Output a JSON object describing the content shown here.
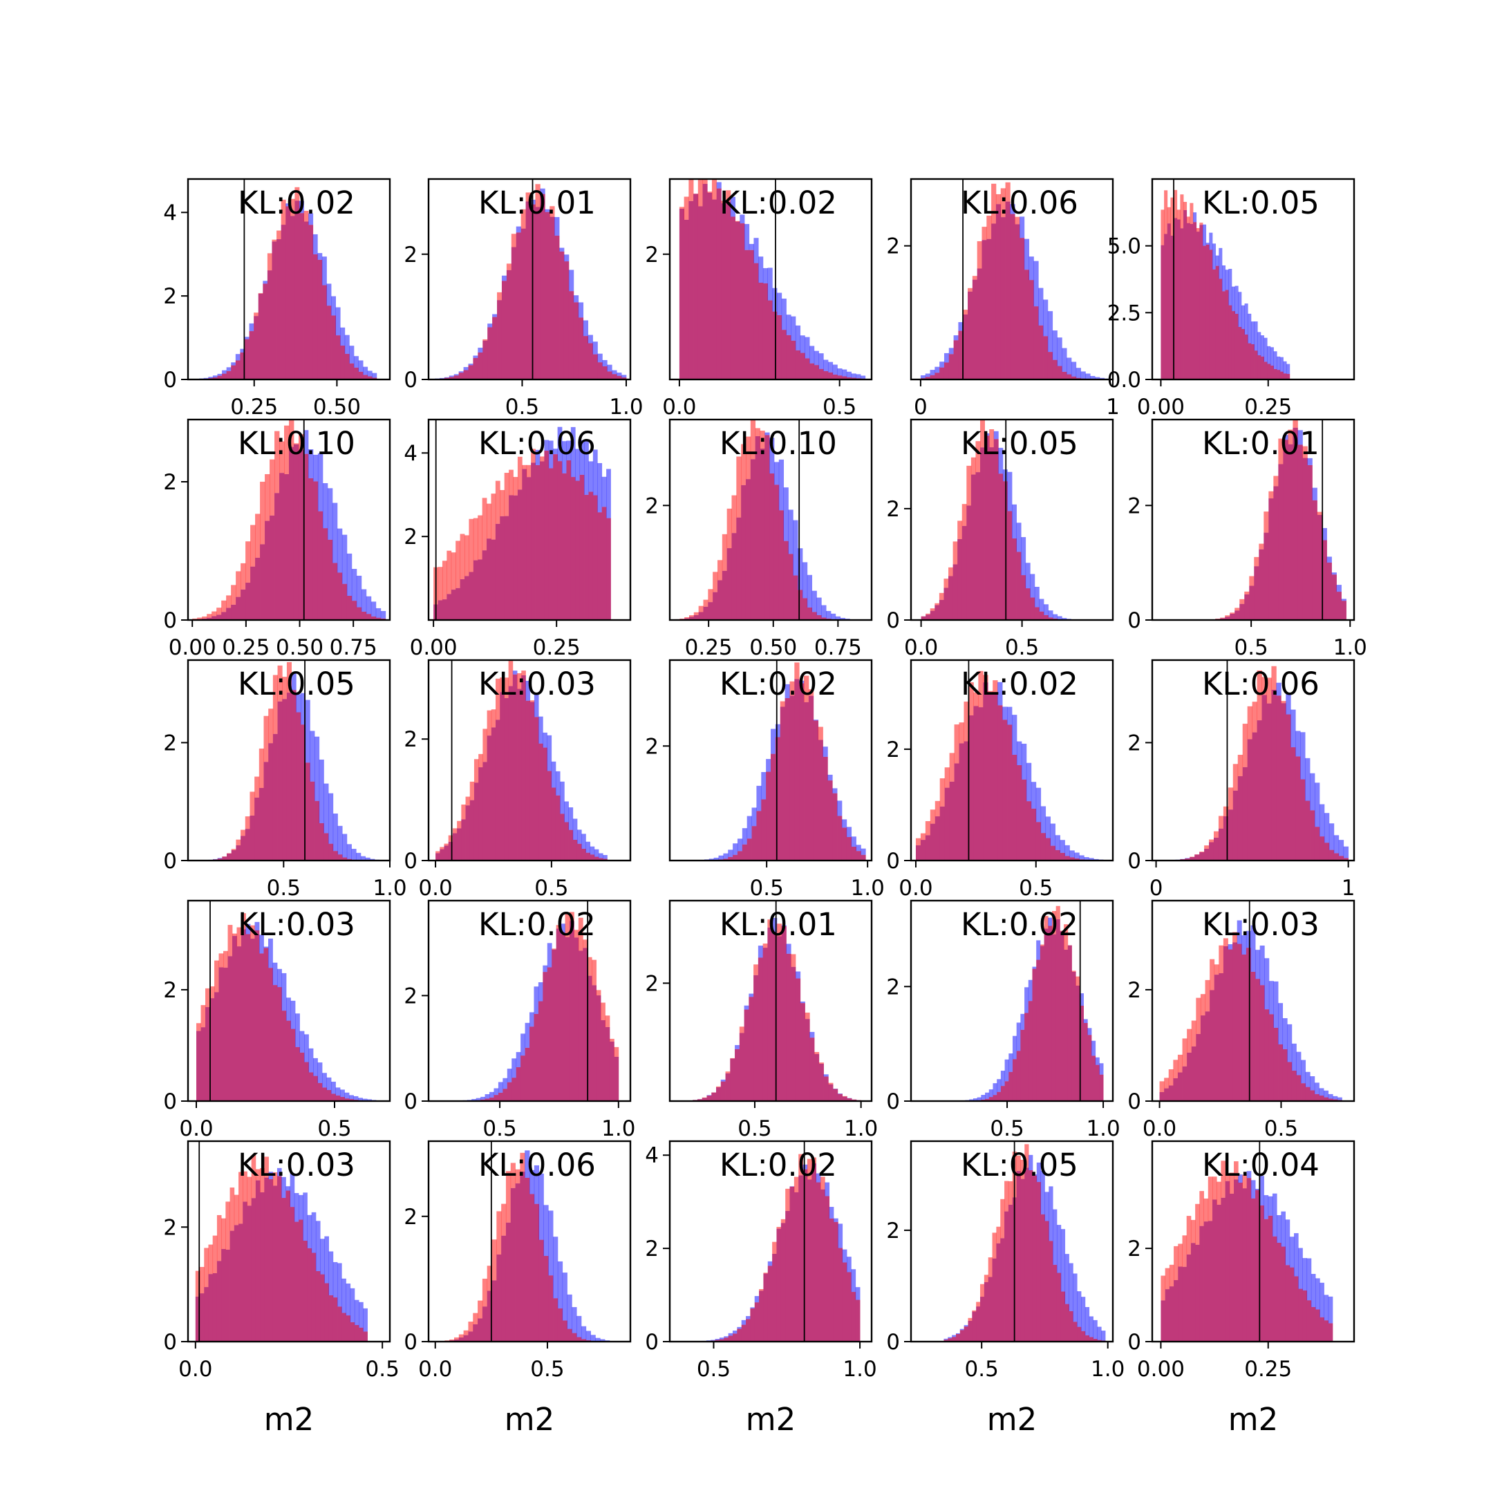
{
  "figure": {
    "rows": 5,
    "cols": 5,
    "xlabel": "m2",
    "colors": {
      "blue": "#0000ff",
      "red": "#ff0000",
      "overlap": "#c0397a",
      "vline": "#000000",
      "frame": "#000000"
    }
  },
  "chart_data": [
    {
      "type": "bar",
      "kl_label": "KL:0.02",
      "xlim": [
        0.05,
        0.66
      ],
      "ylim": [
        0,
        4.8
      ],
      "xticks": [
        0.25,
        0.5
      ],
      "xticklabels": [
        "0.25",
        "0.50"
      ],
      "yticks": [
        0,
        2,
        4
      ],
      "yticklabels": [
        "0",
        "2",
        "4"
      ],
      "vline": 0.22,
      "dist": {
        "blue": {
          "center": 0.38,
          "spread": 0.09,
          "lo": 0.07,
          "hi": 0.62,
          "peak": 4.2
        },
        "red": {
          "center": 0.37,
          "spread": 0.08,
          "lo": 0.07,
          "hi": 0.62,
          "peak": 4.4
        }
      }
    },
    {
      "type": "bar",
      "kl_label": "KL:0.01",
      "xlim": [
        0.05,
        1.02
      ],
      "ylim": [
        0,
        3.2
      ],
      "xticks": [
        0.5,
        1.0
      ],
      "xticklabels": [
        "0.5",
        "1.0"
      ],
      "yticks": [
        0,
        2
      ],
      "yticklabels": [
        "0",
        "2"
      ],
      "vline": 0.55,
      "dist": {
        "blue": {
          "center": 0.58,
          "spread": 0.15,
          "lo": 0.08,
          "hi": 1.0,
          "peak": 2.9
        },
        "red": {
          "center": 0.57,
          "spread": 0.14,
          "lo": 0.08,
          "hi": 1.0,
          "peak": 3.0
        }
      }
    },
    {
      "type": "bar",
      "kl_label": "KL:0.02",
      "xlim": [
        -0.03,
        0.6
      ],
      "ylim": [
        0,
        3.2
      ],
      "xticks": [
        0.0,
        0.5
      ],
      "xticklabels": [
        "0.0",
        "0.5"
      ],
      "yticks": [
        2
      ],
      "yticklabels": [
        "2"
      ],
      "vline": 0.3,
      "dist": {
        "blue": {
          "center": 0.1,
          "spread": 0.17,
          "lo": 0.0,
          "hi": 0.58,
          "peak": 3.0
        },
        "red": {
          "center": 0.08,
          "spread": 0.15,
          "lo": 0.0,
          "hi": 0.58,
          "peak": 3.2
        }
      }
    },
    {
      "type": "bar",
      "kl_label": "KL:0.06",
      "xlim": [
        -0.05,
        1.0
      ],
      "ylim": [
        0,
        3.0
      ],
      "xticks": [
        0.0,
        1.0
      ],
      "xticklabels": [
        "0",
        "1"
      ],
      "yticks": [
        2
      ],
      "yticklabels": [
        "2"
      ],
      "vline": 0.22,
      "dist": {
        "blue": {
          "center": 0.45,
          "spread": 0.16,
          "lo": 0.0,
          "hi": 0.98,
          "peak": 2.6
        },
        "red": {
          "center": 0.42,
          "spread": 0.13,
          "lo": 0.0,
          "hi": 0.98,
          "peak": 2.9
        }
      }
    },
    {
      "type": "bar",
      "kl_label": "KL:0.05",
      "xlim": [
        -0.02,
        0.45
      ],
      "ylim": [
        0,
        7.5
      ],
      "xticks": [
        0.0,
        0.25
      ],
      "xticklabels": [
        "0.00",
        "0.25"
      ],
      "yticks": [
        0,
        2.5,
        5.0
      ],
      "yticklabels": [
        "0.0",
        "2.5",
        "5.0"
      ],
      "vline": 0.03,
      "dist": {
        "blue": {
          "center": 0.06,
          "spread": 0.11,
          "lo": 0.0,
          "hi": 0.3,
          "peak": 6.0
        },
        "red": {
          "center": 0.03,
          "spread": 0.1,
          "lo": 0.0,
          "hi": 0.3,
          "peak": 6.8
        }
      }
    },
    {
      "type": "bar",
      "kl_label": "KL:0.10",
      "xlim": [
        -0.02,
        0.92
      ],
      "ylim": [
        0,
        2.9
      ],
      "xticks": [
        0.0,
        0.25,
        0.5,
        0.75
      ],
      "xticklabels": [
        "0.00",
        "0.25",
        "0.50",
        "0.75"
      ],
      "yticks": [
        0,
        2
      ],
      "yticklabels": [
        "0",
        "2"
      ],
      "vline": 0.52,
      "dist": {
        "blue": {
          "center": 0.52,
          "spread": 0.15,
          "lo": 0.0,
          "hi": 0.9,
          "peak": 2.6
        },
        "red": {
          "center": 0.45,
          "spread": 0.14,
          "lo": 0.0,
          "hi": 0.9,
          "peak": 2.8
        }
      }
    },
    {
      "type": "bar",
      "kl_label": "KL:0.06",
      "xlim": [
        -0.01,
        0.4
      ],
      "ylim": [
        0,
        4.8
      ],
      "xticks": [
        0.0,
        0.25
      ],
      "xticklabels": [
        "0.00",
        "0.25"
      ],
      "yticks": [
        2,
        4
      ],
      "yticklabels": [
        "2",
        "4"
      ],
      "vline": 0.005,
      "dist": {
        "blue": {
          "center": 0.27,
          "spread": 0.12,
          "lo": 0.0,
          "hi": 0.36,
          "peak": 4.4
        },
        "red": {
          "center": 0.22,
          "spread": 0.14,
          "lo": 0.0,
          "hi": 0.36,
          "peak": 3.9
        }
      }
    },
    {
      "type": "bar",
      "kl_label": "KL:0.10",
      "xlim": [
        0.1,
        0.88
      ],
      "ylim": [
        0,
        3.5
      ],
      "xticks": [
        0.25,
        0.5,
        0.75
      ],
      "xticklabels": [
        "0.25",
        "0.50",
        "0.75"
      ],
      "yticks": [
        2
      ],
      "yticklabels": [
        "2"
      ],
      "vline": 0.6,
      "dist": {
        "blue": {
          "center": 0.47,
          "spread": 0.1,
          "lo": 0.12,
          "hi": 0.85,
          "peak": 3.2
        },
        "red": {
          "center": 0.43,
          "spread": 0.09,
          "lo": 0.12,
          "hi": 0.85,
          "peak": 3.5
        }
      }
    },
    {
      "type": "bar",
      "kl_label": "KL:0.05",
      "xlim": [
        -0.05,
        0.95
      ],
      "ylim": [
        0,
        3.6
      ],
      "xticks": [
        0.0,
        0.5
      ],
      "xticklabels": [
        "0.0",
        "0.5"
      ],
      "yticks": [
        0,
        2
      ],
      "yticklabels": [
        "0",
        "2"
      ],
      "vline": 0.42,
      "dist": {
        "blue": {
          "center": 0.35,
          "spread": 0.12,
          "lo": 0.0,
          "hi": 0.9,
          "peak": 3.3
        },
        "red": {
          "center": 0.32,
          "spread": 0.11,
          "lo": 0.0,
          "hi": 0.9,
          "peak": 3.5
        }
      }
    },
    {
      "type": "bar",
      "kl_label": "KL:0.01",
      "xlim": [
        0.0,
        1.02
      ],
      "ylim": [
        0,
        3.5
      ],
      "xticks": [
        0.5,
        1.0
      ],
      "xticklabels": [
        "0.5",
        "1.0"
      ],
      "yticks": [
        0,
        2
      ],
      "yticklabels": [
        "0",
        "2"
      ],
      "vline": 0.86,
      "dist": {
        "blue": {
          "center": 0.72,
          "spread": 0.12,
          "lo": 0.0,
          "hi": 0.98,
          "peak": 3.3
        },
        "red": {
          "center": 0.71,
          "spread": 0.12,
          "lo": 0.0,
          "hi": 0.98,
          "peak": 3.4
        }
      }
    },
    {
      "type": "bar",
      "kl_label": "KL:0.05",
      "xlim": [
        0.05,
        1.0
      ],
      "ylim": [
        0,
        3.4
      ],
      "xticks": [
        0.5,
        1.0
      ],
      "xticklabels": [
        "0.5",
        "1.0"
      ],
      "yticks": [
        0,
        2
      ],
      "yticklabels": [
        "0",
        "2"
      ],
      "vline": 0.6,
      "dist": {
        "blue": {
          "center": 0.55,
          "spread": 0.12,
          "lo": 0.08,
          "hi": 0.95,
          "peak": 3.0
        },
        "red": {
          "center": 0.5,
          "spread": 0.1,
          "lo": 0.08,
          "hi": 0.95,
          "peak": 3.3
        }
      }
    },
    {
      "type": "bar",
      "kl_label": "KL:0.03",
      "xlim": [
        -0.03,
        0.84
      ],
      "ylim": [
        0,
        3.3
      ],
      "xticks": [
        0.0,
        0.5
      ],
      "xticklabels": [
        "0.0",
        "0.5"
      ],
      "yticks": [
        0,
        2
      ],
      "yticklabels": [
        "0",
        "2"
      ],
      "vline": 0.07,
      "dist": {
        "blue": {
          "center": 0.36,
          "spread": 0.14,
          "lo": 0.0,
          "hi": 0.74,
          "peak": 3.0
        },
        "red": {
          "center": 0.33,
          "spread": 0.13,
          "lo": 0.0,
          "hi": 0.74,
          "peak": 3.2
        }
      }
    },
    {
      "type": "bar",
      "kl_label": "KL:0.02",
      "xlim": [
        0.02,
        1.02
      ],
      "ylim": [
        0,
        3.5
      ],
      "xticks": [
        0.5,
        1.0
      ],
      "xticklabels": [
        "0.5",
        "1.0"
      ],
      "yticks": [
        2
      ],
      "yticklabels": [
        "2"
      ],
      "vline": 0.55,
      "dist": {
        "blue": {
          "center": 0.65,
          "spread": 0.14,
          "lo": 0.05,
          "hi": 0.99,
          "peak": 3.1
        },
        "red": {
          "center": 0.66,
          "spread": 0.12,
          "lo": 0.05,
          "hi": 0.99,
          "peak": 3.3
        }
      }
    },
    {
      "type": "bar",
      "kl_label": "KL:0.02",
      "xlim": [
        -0.02,
        0.82
      ],
      "ylim": [
        0,
        3.6
      ],
      "xticks": [
        0.0,
        0.5
      ],
      "xticklabels": [
        "0.0",
        "0.5"
      ],
      "yticks": [
        0,
        2
      ],
      "yticklabels": [
        "0",
        "2"
      ],
      "vline": 0.22,
      "dist": {
        "blue": {
          "center": 0.32,
          "spread": 0.14,
          "lo": 0.0,
          "hi": 0.8,
          "peak": 3.1
        },
        "red": {
          "center": 0.28,
          "spread": 0.13,
          "lo": 0.0,
          "hi": 0.8,
          "peak": 3.3
        }
      }
    },
    {
      "type": "bar",
      "kl_label": "KL:0.06",
      "xlim": [
        -0.02,
        1.03
      ],
      "ylim": [
        0,
        3.4
      ],
      "xticks": [
        0.0,
        1.0
      ],
      "xticklabels": [
        "0",
        "1"
      ],
      "yticks": [
        0,
        2
      ],
      "yticklabels": [
        "0",
        "2"
      ],
      "vline": 0.37,
      "dist": {
        "blue": {
          "center": 0.63,
          "spread": 0.16,
          "lo": 0.0,
          "hi": 1.0,
          "peak": 2.9
        },
        "red": {
          "center": 0.58,
          "spread": 0.14,
          "lo": 0.0,
          "hi": 1.0,
          "peak": 3.2
        }
      }
    },
    {
      "type": "bar",
      "kl_label": "KL:0.03",
      "xlim": [
        -0.03,
        0.7
      ],
      "ylim": [
        0,
        3.6
      ],
      "xticks": [
        0.0,
        0.5
      ],
      "xticklabels": [
        "0.0",
        "0.5"
      ],
      "yticks": [
        0,
        2
      ],
      "yticklabels": [
        "0",
        "2"
      ],
      "vline": 0.05,
      "dist": {
        "blue": {
          "center": 0.2,
          "spread": 0.14,
          "lo": 0.0,
          "hi": 0.65,
          "peak": 3.1
        },
        "red": {
          "center": 0.17,
          "spread": 0.13,
          "lo": 0.0,
          "hi": 0.65,
          "peak": 3.2
        }
      }
    },
    {
      "type": "bar",
      "kl_label": "KL:0.02",
      "xlim": [
        0.2,
        1.05
      ],
      "ylim": [
        0,
        3.8
      ],
      "xticks": [
        0.5,
        1.0
      ],
      "xticklabels": [
        "0.5",
        "1.0"
      ],
      "yticks": [
        0,
        2
      ],
      "yticklabels": [
        "0",
        "2"
      ],
      "vline": 0.87,
      "dist": {
        "blue": {
          "center": 0.78,
          "spread": 0.13,
          "lo": 0.25,
          "hi": 1.0,
          "peak": 3.3
        },
        "red": {
          "center": 0.8,
          "spread": 0.12,
          "lo": 0.25,
          "hi": 1.0,
          "peak": 3.5
        }
      }
    },
    {
      "type": "bar",
      "kl_label": "KL:0.01",
      "xlim": [
        0.1,
        1.05
      ],
      "ylim": [
        0,
        3.4
      ],
      "xticks": [
        0.5,
        1.0
      ],
      "xticklabels": [
        "0.5",
        "1.0"
      ],
      "yticks": [
        2
      ],
      "yticklabels": [
        "2"
      ],
      "vline": 0.6,
      "dist": {
        "blue": {
          "center": 0.6,
          "spread": 0.12,
          "lo": 0.12,
          "hi": 1.0,
          "peak": 3.0
        },
        "red": {
          "center": 0.6,
          "spread": 0.12,
          "lo": 0.12,
          "hi": 1.0,
          "peak": 3.0
        }
      }
    },
    {
      "type": "bar",
      "kl_label": "KL:0.02",
      "xlim": [
        0.0,
        1.05
      ],
      "ylim": [
        0,
        3.5
      ],
      "xticks": [
        0.5,
        1.0
      ],
      "xticklabels": [
        "0.5",
        "1.0"
      ],
      "yticks": [
        0,
        2
      ],
      "yticklabels": [
        "0",
        "2"
      ],
      "vline": 0.88,
      "dist": {
        "blue": {
          "center": 0.74,
          "spread": 0.14,
          "lo": 0.18,
          "hi": 1.0,
          "peak": 3.1
        },
        "red": {
          "center": 0.75,
          "spread": 0.12,
          "lo": 0.18,
          "hi": 1.0,
          "peak": 3.3
        }
      }
    },
    {
      "type": "bar",
      "kl_label": "KL:0.03",
      "xlim": [
        -0.03,
        0.8
      ],
      "ylim": [
        0,
        3.6
      ],
      "xticks": [
        0.0,
        0.5
      ],
      "xticklabels": [
        "0.0",
        "0.5"
      ],
      "yticks": [
        0,
        2
      ],
      "yticklabels": [
        "0",
        "2"
      ],
      "vline": 0.37,
      "dist": {
        "blue": {
          "center": 0.35,
          "spread": 0.14,
          "lo": 0.0,
          "hi": 0.75,
          "peak": 3.1
        },
        "red": {
          "center": 0.3,
          "spread": 0.14,
          "lo": 0.0,
          "hi": 0.75,
          "peak": 2.9
        }
      }
    },
    {
      "type": "bar",
      "kl_label": "KL:0.03",
      "xlim": [
        -0.02,
        0.52
      ],
      "ylim": [
        0,
        3.5
      ],
      "xticks": [
        0.0,
        0.5
      ],
      "xticklabels": [
        "0.0",
        "0.5"
      ],
      "yticks": [
        0,
        2
      ],
      "yticklabels": [
        "0",
        "2"
      ],
      "vline": 0.01,
      "dist": {
        "blue": {
          "center": 0.22,
          "spread": 0.13,
          "lo": 0.0,
          "hi": 0.46,
          "peak": 2.9
        },
        "red": {
          "center": 0.17,
          "spread": 0.12,
          "lo": 0.0,
          "hi": 0.46,
          "peak": 3.1
        }
      }
    },
    {
      "type": "bar",
      "kl_label": "KL:0.06",
      "xlim": [
        -0.03,
        0.87
      ],
      "ylim": [
        0,
        3.2
      ],
      "xticks": [
        0.0,
        0.5
      ],
      "xticklabels": [
        "0.0",
        "0.5"
      ],
      "yticks": [
        0,
        2
      ],
      "yticklabels": [
        "0",
        "2"
      ],
      "vline": 0.25,
      "dist": {
        "blue": {
          "center": 0.42,
          "spread": 0.11,
          "lo": 0.0,
          "hi": 0.84,
          "peak": 2.9
        },
        "red": {
          "center": 0.37,
          "spread": 0.1,
          "lo": 0.0,
          "hi": 0.84,
          "peak": 2.9
        }
      }
    },
    {
      "type": "bar",
      "kl_label": "KL:0.02",
      "xlim": [
        0.35,
        1.04
      ],
      "ylim": [
        0,
        4.3
      ],
      "xticks": [
        0.5,
        1.0
      ],
      "xticklabels": [
        "0.5",
        "1.0"
      ],
      "yticks": [
        0,
        2,
        4
      ],
      "yticklabels": [
        "0",
        "2",
        "4"
      ],
      "vline": 0.81,
      "dist": {
        "blue": {
          "center": 0.83,
          "spread": 0.11,
          "lo": 0.4,
          "hi": 1.0,
          "peak": 3.7
        },
        "red": {
          "center": 0.82,
          "spread": 0.1,
          "lo": 0.4,
          "hi": 1.0,
          "peak": 3.9
        }
      }
    },
    {
      "type": "bar",
      "kl_label": "KL:0.05",
      "xlim": [
        0.22,
        1.02
      ],
      "ylim": [
        0,
        3.6
      ],
      "xticks": [
        0.5,
        1.0
      ],
      "xticklabels": [
        "0.5",
        "1.0"
      ],
      "yticks": [
        0,
        2
      ],
      "yticklabels": [
        "0",
        "2"
      ],
      "vline": 0.63,
      "dist": {
        "blue": {
          "center": 0.7,
          "spread": 0.12,
          "lo": 0.35,
          "hi": 0.99,
          "peak": 3.2
        },
        "red": {
          "center": 0.66,
          "spread": 0.1,
          "lo": 0.35,
          "hi": 0.99,
          "peak": 3.4
        }
      }
    },
    {
      "type": "bar",
      "kl_label": "KL:0.04",
      "xlim": [
        -0.02,
        0.45
      ],
      "ylim": [
        0,
        4.3
      ],
      "xticks": [
        0.0,
        0.25
      ],
      "xticklabels": [
        "0.00",
        "0.25"
      ],
      "yticks": [
        0,
        2
      ],
      "yticklabels": [
        "0",
        "2"
      ],
      "vline": 0.23,
      "dist": {
        "blue": {
          "center": 0.2,
          "spread": 0.12,
          "lo": 0.0,
          "hi": 0.4,
          "peak": 3.5
        },
        "red": {
          "center": 0.16,
          "spread": 0.11,
          "lo": 0.0,
          "hi": 0.4,
          "peak": 3.7
        }
      }
    }
  ]
}
